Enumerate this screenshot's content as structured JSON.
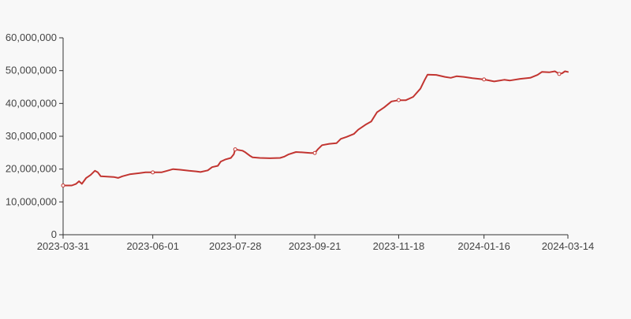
{
  "chart_data": {
    "type": "line",
    "title": "",
    "xlabel": "",
    "ylabel": "",
    "grid": false,
    "x_tick_labels": [
      "2023-03-31",
      "2023-06-01",
      "2023-07-28",
      "2023-09-21",
      "2023-11-18",
      "2024-01-16",
      "2024-03-14"
    ],
    "y_ticks": [
      0,
      10000000,
      20000000,
      30000000,
      40000000,
      50000000,
      60000000
    ],
    "y_tick_labels": [
      "0",
      "10,000,000",
      "20,000,000",
      "30,000,000",
      "40,000,000",
      "50,000,000",
      "60,000,000"
    ],
    "ylim": [
      0,
      60000000
    ],
    "xlim": [
      "2023-03-31",
      "2024-03-14"
    ],
    "series": [
      {
        "color": "#c23531",
        "points": [
          [
            "2023-03-31",
            15000000
          ],
          [
            "2023-04-06",
            15000000
          ],
          [
            "2023-04-09",
            15500000
          ],
          [
            "2023-04-11",
            16300000
          ],
          [
            "2023-04-13",
            15500000
          ],
          [
            "2023-04-16",
            17300000
          ],
          [
            "2023-04-19",
            18200000
          ],
          [
            "2023-04-22",
            19500000
          ],
          [
            "2023-04-24",
            19000000
          ],
          [
            "2023-04-26",
            17800000
          ],
          [
            "2023-05-05",
            17600000
          ],
          [
            "2023-05-08",
            17300000
          ],
          [
            "2023-05-11",
            17800000
          ],
          [
            "2023-05-16",
            18400000
          ],
          [
            "2023-05-23",
            18800000
          ],
          [
            "2023-05-27",
            19000000
          ],
          [
            "2023-06-01",
            19000000
          ],
          [
            "2023-06-07",
            19000000
          ],
          [
            "2023-06-11",
            19500000
          ],
          [
            "2023-06-15",
            20000000
          ],
          [
            "2023-06-20",
            19800000
          ],
          [
            "2023-06-26",
            19500000
          ],
          [
            "2023-07-01",
            19300000
          ],
          [
            "2023-07-04",
            19100000
          ],
          [
            "2023-07-09",
            19600000
          ],
          [
            "2023-07-12",
            20600000
          ],
          [
            "2023-07-16",
            21000000
          ],
          [
            "2023-07-18",
            22300000
          ],
          [
            "2023-07-21",
            22900000
          ],
          [
            "2023-07-25",
            23400000
          ],
          [
            "2023-07-27",
            24500000
          ],
          [
            "2023-07-28",
            26000000
          ],
          [
            "2023-08-02",
            25600000
          ],
          [
            "2023-08-04",
            25100000
          ],
          [
            "2023-08-07",
            24100000
          ],
          [
            "2023-08-09",
            23600000
          ],
          [
            "2023-08-14",
            23400000
          ],
          [
            "2023-08-21",
            23300000
          ],
          [
            "2023-08-28",
            23400000
          ],
          [
            "2023-08-31",
            23800000
          ],
          [
            "2023-09-03",
            24500000
          ],
          [
            "2023-09-08",
            25200000
          ],
          [
            "2023-09-12",
            25100000
          ],
          [
            "2023-09-18",
            24900000
          ],
          [
            "2023-09-21",
            24900000
          ],
          [
            "2023-09-23",
            26000000
          ],
          [
            "2023-09-26",
            27300000
          ],
          [
            "2023-10-01",
            27700000
          ],
          [
            "2023-10-06",
            27900000
          ],
          [
            "2023-10-09",
            29200000
          ],
          [
            "2023-10-13",
            29800000
          ],
          [
            "2023-10-18",
            30700000
          ],
          [
            "2023-10-21",
            32000000
          ],
          [
            "2023-10-26",
            33500000
          ],
          [
            "2023-10-30",
            34500000
          ],
          [
            "2023-11-03",
            37300000
          ],
          [
            "2023-11-08",
            38800000
          ],
          [
            "2023-11-13",
            40600000
          ],
          [
            "2023-11-18",
            41000000
          ],
          [
            "2023-11-23",
            41000000
          ],
          [
            "2023-11-28",
            42000000
          ],
          [
            "2023-12-03",
            44500000
          ],
          [
            "2023-12-06",
            47200000
          ],
          [
            "2023-12-08",
            48800000
          ],
          [
            "2023-12-14",
            48700000
          ],
          [
            "2023-12-20",
            48100000
          ],
          [
            "2023-12-24",
            47800000
          ],
          [
            "2023-12-28",
            48300000
          ],
          [
            "2024-01-02",
            48100000
          ],
          [
            "2024-01-08",
            47700000
          ],
          [
            "2024-01-16",
            47300000
          ],
          [
            "2024-01-23",
            46700000
          ],
          [
            "2024-01-30",
            47200000
          ],
          [
            "2024-02-03",
            47000000
          ],
          [
            "2024-02-10",
            47500000
          ],
          [
            "2024-02-17",
            47800000
          ],
          [
            "2024-02-22",
            48700000
          ],
          [
            "2024-02-25",
            49600000
          ],
          [
            "2024-03-01",
            49500000
          ],
          [
            "2024-03-05",
            49800000
          ],
          [
            "2024-03-08",
            49000000
          ],
          [
            "2024-03-10",
            49200000
          ],
          [
            "2024-03-12",
            49800000
          ],
          [
            "2024-03-14",
            49600000
          ]
        ],
        "markers": [
          "2023-03-31",
          "2023-06-01",
          "2023-07-28",
          "2023-09-21",
          "2023-11-18",
          "2024-01-16",
          "2024-03-08"
        ]
      }
    ]
  }
}
